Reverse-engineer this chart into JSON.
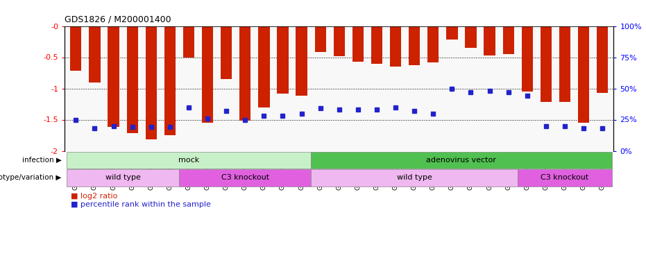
{
  "title": "GDS1826 / M200001400",
  "samples": [
    "GSM87316",
    "GSM87317",
    "GSM93998",
    "GSM93999",
    "GSM94000",
    "GSM94001",
    "GSM93633",
    "GSM93634",
    "GSM93651",
    "GSM93652",
    "GSM93653",
    "GSM93654",
    "GSM93657",
    "GSM86643",
    "GSM87306",
    "GSM87307",
    "GSM87308",
    "GSM87309",
    "GSM87310",
    "GSM87311",
    "GSM87312",
    "GSM87313",
    "GSM87314",
    "GSM87315",
    "GSM93655",
    "GSM93656",
    "GSM93658",
    "GSM93659",
    "GSM93660"
  ],
  "log2_ratio": [
    -0.72,
    -0.9,
    -1.62,
    -1.72,
    -1.82,
    -1.75,
    -0.5,
    -1.55,
    -0.85,
    -1.52,
    -1.3,
    -1.08,
    -1.12,
    -0.42,
    -0.48,
    -0.57,
    -0.6,
    -0.65,
    -0.63,
    -0.58,
    -0.22,
    -0.35,
    -0.47,
    -0.45,
    -1.05,
    -1.22,
    -1.22,
    -1.55,
    -1.07
  ],
  "percentile": [
    25,
    18,
    20,
    19,
    19,
    19,
    35,
    26,
    32,
    25,
    28,
    28,
    30,
    34,
    33,
    33,
    33,
    35,
    32,
    30,
    50,
    47,
    48,
    47,
    44,
    20,
    20,
    18,
    18
  ],
  "infection_groups": [
    {
      "label": "mock",
      "start": 0,
      "end": 13,
      "color": "#c8f0c8"
    },
    {
      "label": "adenovirus vector",
      "start": 13,
      "end": 29,
      "color": "#50c050"
    }
  ],
  "genotype_groups": [
    {
      "label": "wild type",
      "start": 0,
      "end": 6,
      "color": "#f0b8f0"
    },
    {
      "label": "C3 knockout",
      "start": 6,
      "end": 13,
      "color": "#e060e0"
    },
    {
      "label": "wild type",
      "start": 13,
      "end": 24,
      "color": "#f0b8f0"
    },
    {
      "label": "C3 knockout",
      "start": 24,
      "end": 29,
      "color": "#e060e0"
    }
  ],
  "bar_color": "#cc2200",
  "percentile_color": "#2222cc",
  "ylim_left": [
    -2.0,
    0.0
  ],
  "ylim_right": [
    0,
    100
  ],
  "yticks_left": [
    0.0,
    -0.5,
    -1.0,
    -1.5,
    -2.0
  ],
  "ytick_labels_left": [
    "-0",
    "-0.5",
    "-1",
    "-1.5",
    "-2"
  ],
  "yticks_right": [
    0,
    25,
    50,
    75,
    100
  ],
  "ytick_labels_right": [
    "0%",
    "25%",
    "50%",
    "75%",
    "100%"
  ],
  "background_color": "#ffffff",
  "plot_bg_color": "#f8f8f8"
}
